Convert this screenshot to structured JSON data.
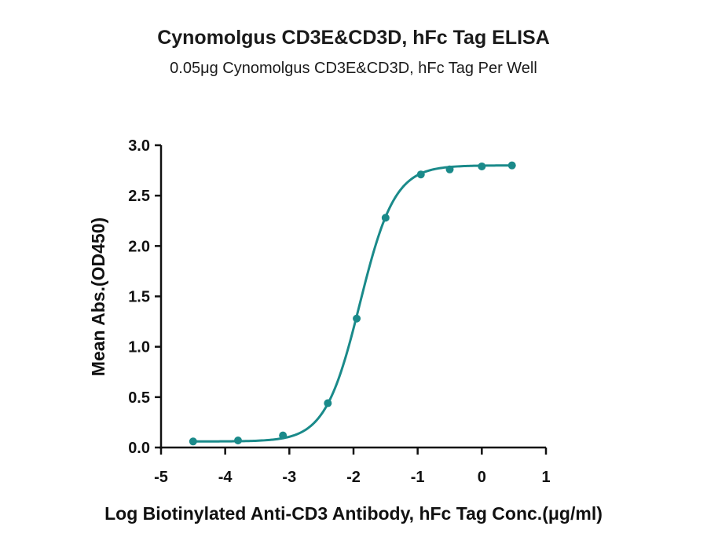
{
  "chart_data": {
    "type": "scatter",
    "title": "Cynomolgus CD3E&CD3D, hFc Tag ELISA",
    "subtitle": "0.05μg Cynomolgus CD3E&CD3D, hFc Tag Per Well",
    "xlabel": "Log Biotinylated Anti-CD3 Antibody, hFc Tag Conc.(μg/ml)",
    "ylabel": "Mean Abs.(OD450)",
    "xlim": [
      -5,
      1
    ],
    "ylim": [
      0,
      3
    ],
    "x_ticks": [
      "-5",
      "-4",
      "-3",
      "-2",
      "-1",
      "0",
      "1"
    ],
    "y_ticks": [
      "0.0",
      "0.5",
      "1.0",
      "1.5",
      "2.0",
      "2.5",
      "3.0"
    ],
    "series": [
      {
        "x": [
          -4.5,
          -3.8,
          -3.1,
          -2.4,
          -1.95,
          -1.5,
          -0.95,
          -0.5,
          0.0,
          0.47
        ],
        "y": [
          0.06,
          0.07,
          0.12,
          0.44,
          1.28,
          2.28,
          2.71,
          2.76,
          2.79,
          2.8
        ],
        "fit": "4PL sigmoid",
        "fit_params": {
          "bottom": 0.06,
          "top": 2.8,
          "logEC50": -1.9,
          "hill": 1.6
        }
      }
    ],
    "color": "#1a8a8a",
    "grid": false,
    "legend": "none"
  }
}
